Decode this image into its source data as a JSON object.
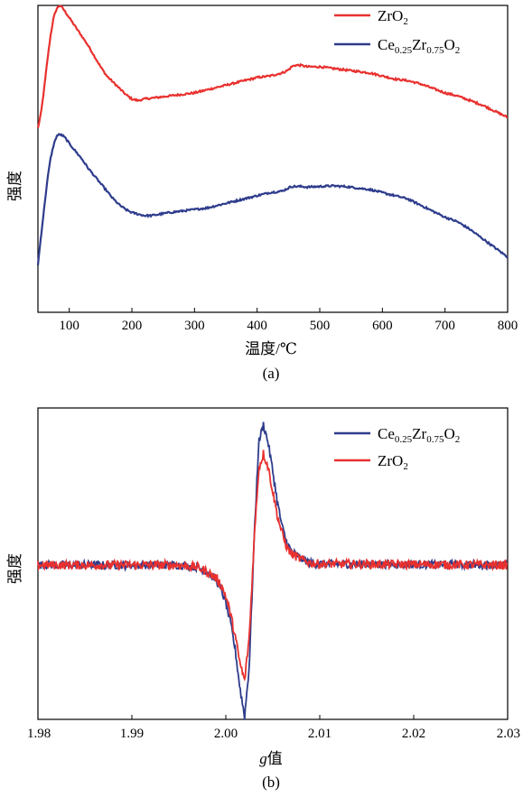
{
  "chart_data": [
    {
      "type": "line",
      "panel_label": "(a)",
      "xlabel": "温度/℃",
      "ylabel": "强度",
      "xlim": [
        50,
        800
      ],
      "xticks": [
        100,
        200,
        300,
        400,
        500,
        600,
        700,
        800
      ],
      "yticks": [],
      "grid": false,
      "legend_position": "top-right",
      "series": [
        {
          "name": "ZrO2",
          "legend_main": "ZrO",
          "legend_sub": "2",
          "color": "#e8312f",
          "x": [
            50,
            55,
            60,
            65,
            70,
            75,
            80,
            85,
            90,
            95,
            100,
            110,
            120,
            130,
            140,
            150,
            160,
            170,
            180,
            190,
            200,
            210,
            220,
            240,
            260,
            280,
            300,
            320,
            340,
            360,
            380,
            400,
            420,
            440,
            450,
            455,
            460,
            470,
            480,
            500,
            520,
            540,
            560,
            580,
            600,
            620,
            640,
            660,
            680,
            700,
            720,
            740,
            760,
            780,
            800
          ],
          "y": [
            0.6,
            0.65,
            0.73,
            0.82,
            0.9,
            0.96,
            0.99,
            1.0,
            0.99,
            0.975,
            0.96,
            0.93,
            0.9,
            0.87,
            0.835,
            0.8,
            0.77,
            0.75,
            0.73,
            0.71,
            0.695,
            0.69,
            0.695,
            0.7,
            0.705,
            0.71,
            0.715,
            0.725,
            0.735,
            0.745,
            0.755,
            0.765,
            0.77,
            0.78,
            0.79,
            0.8,
            0.805,
            0.805,
            0.8,
            0.8,
            0.795,
            0.79,
            0.785,
            0.78,
            0.77,
            0.76,
            0.755,
            0.745,
            0.73,
            0.715,
            0.705,
            0.69,
            0.675,
            0.655,
            0.635
          ]
        },
        {
          "name": "Ce0.25Zr0.75O2",
          "legend_main": "Ce",
          "legend_parts": [
            [
              "Ce",
              ""
            ],
            [
              "0.25",
              "sub"
            ],
            [
              "Zr",
              ""
            ],
            [
              "0.75",
              "sub"
            ],
            [
              "O",
              ""
            ],
            [
              "2",
              "sub"
            ]
          ],
          "color": "#2e3c8c",
          "x": [
            50,
            55,
            60,
            65,
            70,
            75,
            80,
            85,
            90,
            95,
            100,
            110,
            120,
            130,
            140,
            150,
            160,
            170,
            180,
            190,
            200,
            210,
            220,
            230,
            240,
            260,
            280,
            300,
            320,
            340,
            360,
            380,
            400,
            420,
            440,
            450,
            455,
            460,
            470,
            480,
            500,
            520,
            540,
            560,
            580,
            600,
            620,
            640,
            660,
            680,
            700,
            720,
            740,
            760,
            780,
            800
          ],
          "y": [
            0.155,
            0.25,
            0.34,
            0.43,
            0.5,
            0.545,
            0.575,
            0.58,
            0.575,
            0.565,
            0.55,
            0.525,
            0.5,
            0.47,
            0.445,
            0.42,
            0.395,
            0.37,
            0.35,
            0.335,
            0.325,
            0.32,
            0.315,
            0.315,
            0.318,
            0.325,
            0.33,
            0.335,
            0.34,
            0.35,
            0.36,
            0.37,
            0.38,
            0.39,
            0.395,
            0.405,
            0.41,
            0.41,
            0.41,
            0.408,
            0.41,
            0.412,
            0.41,
            0.405,
            0.4,
            0.39,
            0.38,
            0.37,
            0.35,
            0.33,
            0.31,
            0.295,
            0.27,
            0.24,
            0.21,
            0.18
          ]
        }
      ]
    },
    {
      "type": "line",
      "panel_label": "(b)",
      "xlabel": "g值",
      "xlabel_italic": "g",
      "xlabel_rest": "值",
      "ylabel": "强度",
      "xlim": [
        1.98,
        2.03
      ],
      "xticks": [
        "1.98",
        "1.99",
        "2.00",
        "2.01",
        "2.02",
        "2.03"
      ],
      "yticks": [],
      "grid": false,
      "legend_position": "top-right",
      "series": [
        {
          "name": "Ce0.25Zr0.75O2",
          "legend_parts": [
            [
              "Ce",
              ""
            ],
            [
              "0.25",
              "sub"
            ],
            [
              "Zr",
              ""
            ],
            [
              "0.75",
              "sub"
            ],
            [
              "O",
              ""
            ],
            [
              "2",
              "sub"
            ]
          ],
          "color": "#2e3c8c",
          "x": [
            1.98,
            1.995,
            1.997,
            1.998,
            1.999,
            1.9995,
            2.0,
            2.0005,
            2.001,
            2.0015,
            2.002,
            2.0025,
            2.003,
            2.0035,
            2.004,
            2.0045,
            2.005,
            2.0055,
            2.006,
            2.0065,
            2.007,
            2.008,
            2.009,
            2.01,
            2.03
          ],
          "y": [
            0.0,
            0.0,
            -0.01,
            -0.03,
            -0.07,
            -0.11,
            -0.17,
            -0.26,
            -0.38,
            -0.55,
            -0.68,
            -0.45,
            0.1,
            0.55,
            0.63,
            0.55,
            0.42,
            0.28,
            0.17,
            0.1,
            0.06,
            0.03,
            0.01,
            0.005,
            0.0
          ],
          "noise": 0.018
        },
        {
          "name": "ZrO2",
          "legend_main": "ZrO",
          "legend_sub": "2",
          "color": "#e8312f",
          "x": [
            1.98,
            1.995,
            1.997,
            1.998,
            1.999,
            1.9995,
            2.0,
            2.0005,
            2.001,
            2.0015,
            2.002,
            2.0025,
            2.003,
            2.0035,
            2.004,
            2.0045,
            2.005,
            2.0055,
            2.006,
            2.0065,
            2.007,
            2.008,
            2.009,
            2.01,
            2.03
          ],
          "y": [
            0.0,
            0.0,
            -0.01,
            -0.03,
            -0.06,
            -0.09,
            -0.14,
            -0.22,
            -0.32,
            -0.44,
            -0.52,
            -0.32,
            0.1,
            0.43,
            0.5,
            0.44,
            0.33,
            0.22,
            0.14,
            0.08,
            0.05,
            0.025,
            0.01,
            0.005,
            0.0
          ],
          "noise": 0.02
        }
      ]
    }
  ]
}
